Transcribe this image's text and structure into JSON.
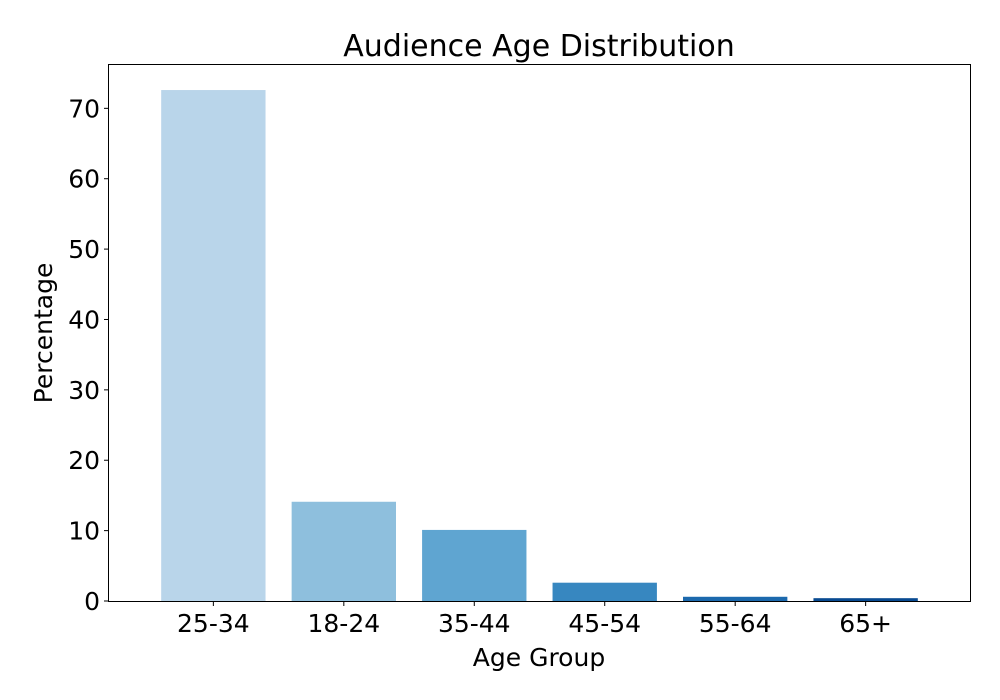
{
  "chart_data": {
    "type": "bar",
    "title": "Audience Age Distribution",
    "xlabel": "Age Group",
    "ylabel": "Percentage",
    "categories": [
      "25-34",
      "18-24",
      "35-44",
      "45-54",
      "55-64",
      "65+"
    ],
    "values": [
      72.6,
      14.1,
      10.1,
      2.6,
      0.6,
      0.4
    ],
    "colors": [
      "#b9d5ea",
      "#8ebfdd",
      "#5fa5d1",
      "#3787c0",
      "#1c69ad",
      "#084a91"
    ],
    "ylim": [
      0,
      76.3
    ],
    "yticks": [
      0,
      10,
      20,
      30,
      40,
      50,
      60,
      70
    ],
    "grid": false
  }
}
